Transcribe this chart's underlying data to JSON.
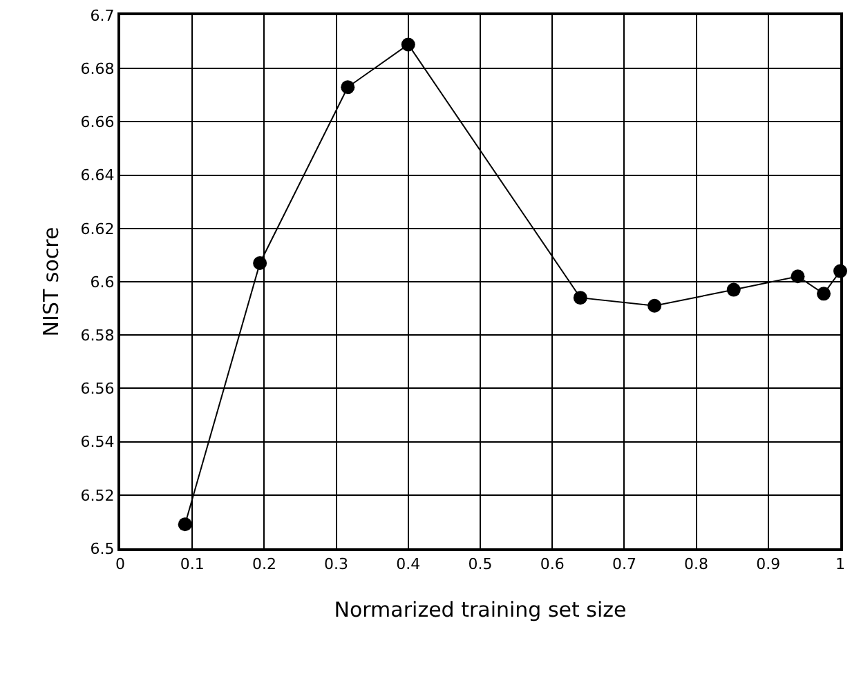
{
  "chart_data": {
    "type": "line",
    "xlabel": "Normarized training set size",
    "ylabel": "NIST socre",
    "x": [
      0.09,
      0.194,
      0.316,
      0.4,
      0.639,
      0.742,
      0.852,
      0.941,
      0.977,
      1.0
    ],
    "series": [
      {
        "color": "#000000",
        "values": [
          6.509,
          6.607,
          6.673,
          6.689,
          6.594,
          6.591,
          6.597,
          6.602,
          6.5955,
          6.604
        ]
      }
    ],
    "xlim": [
      0,
      1
    ],
    "xticks": [
      0,
      0.1,
      0.2,
      0.3,
      0.4,
      0.5,
      0.6,
      0.7,
      0.8,
      0.9,
      1
    ],
    "ylim": [
      6.5,
      6.7
    ],
    "yticks": [
      6.5,
      6.52,
      6.54,
      6.56,
      6.58,
      6.6,
      6.62,
      6.64,
      6.66,
      6.68,
      6.7
    ],
    "grid": true,
    "marker": "circle",
    "line_style": "solid"
  }
}
